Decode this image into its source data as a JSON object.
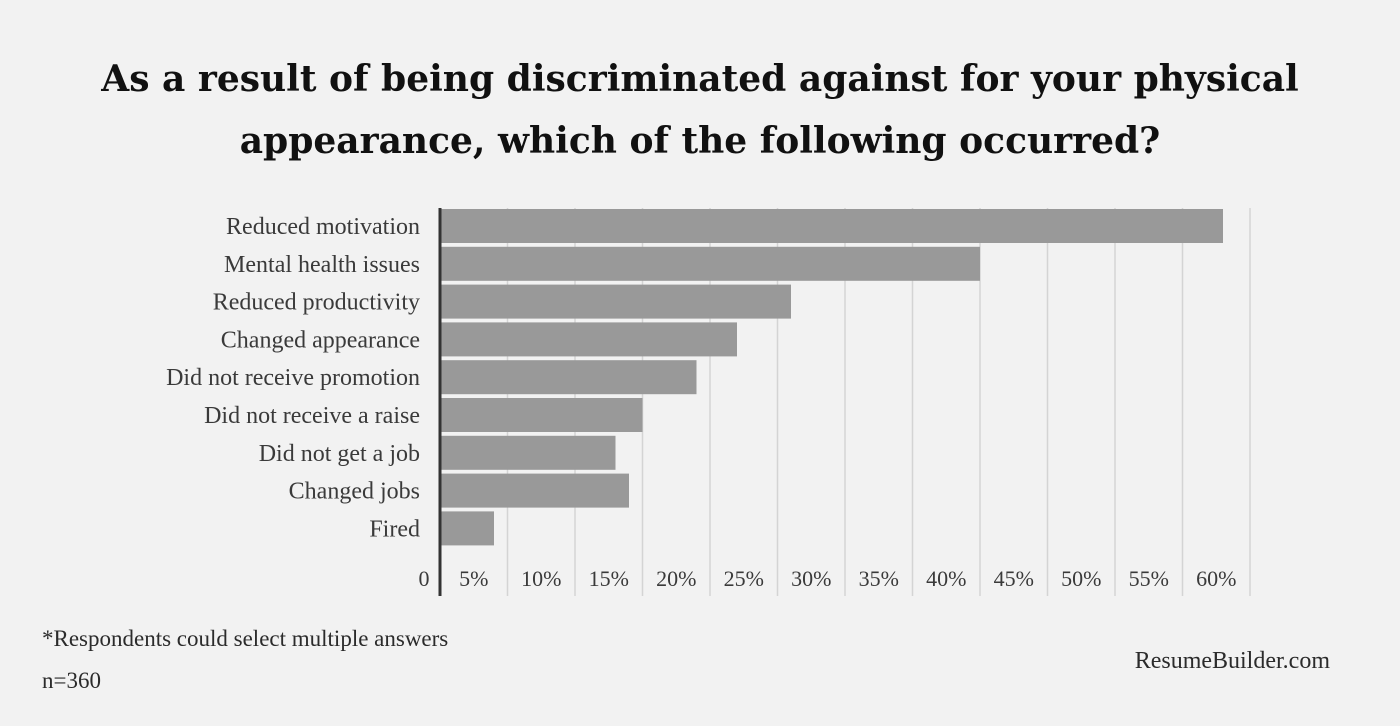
{
  "title_lines": [
    "As a result of being discriminated against for your physical",
    "appearance, which of the following occurred?"
  ],
  "footnotes": {
    "note": "*Respondents could select multiple answers",
    "sample": "n=360"
  },
  "brand": "ResumeBuilder.com",
  "colors": {
    "bar": "#999999",
    "background": "#f2f2f2",
    "grid": "#d4d4d4",
    "axis": "#333333"
  },
  "chart_data": {
    "type": "bar",
    "orientation": "horizontal",
    "title": "As a result of being discriminated against for your physical appearance, which of the following occurred?",
    "categories": [
      "Reduced motivation",
      "Mental health issues",
      "Reduced productivity",
      "Changed appearance",
      "Did not receive promotion",
      "Did not receive a raise",
      "Did not get a job",
      "Changed jobs",
      "Fired"
    ],
    "values": [
      58,
      40,
      26,
      22,
      19,
      15,
      13,
      14,
      4
    ],
    "xlim": [
      0,
      60
    ],
    "xticks": [
      0,
      5,
      10,
      15,
      20,
      25,
      30,
      35,
      40,
      45,
      50,
      55,
      60
    ],
    "xtick_labels": [
      "0",
      "5%",
      "10%",
      "15%",
      "20%",
      "25%",
      "30%",
      "35%",
      "40%",
      "45%",
      "50%",
      "55%",
      "60%"
    ],
    "grid": true,
    "legend": "none"
  }
}
